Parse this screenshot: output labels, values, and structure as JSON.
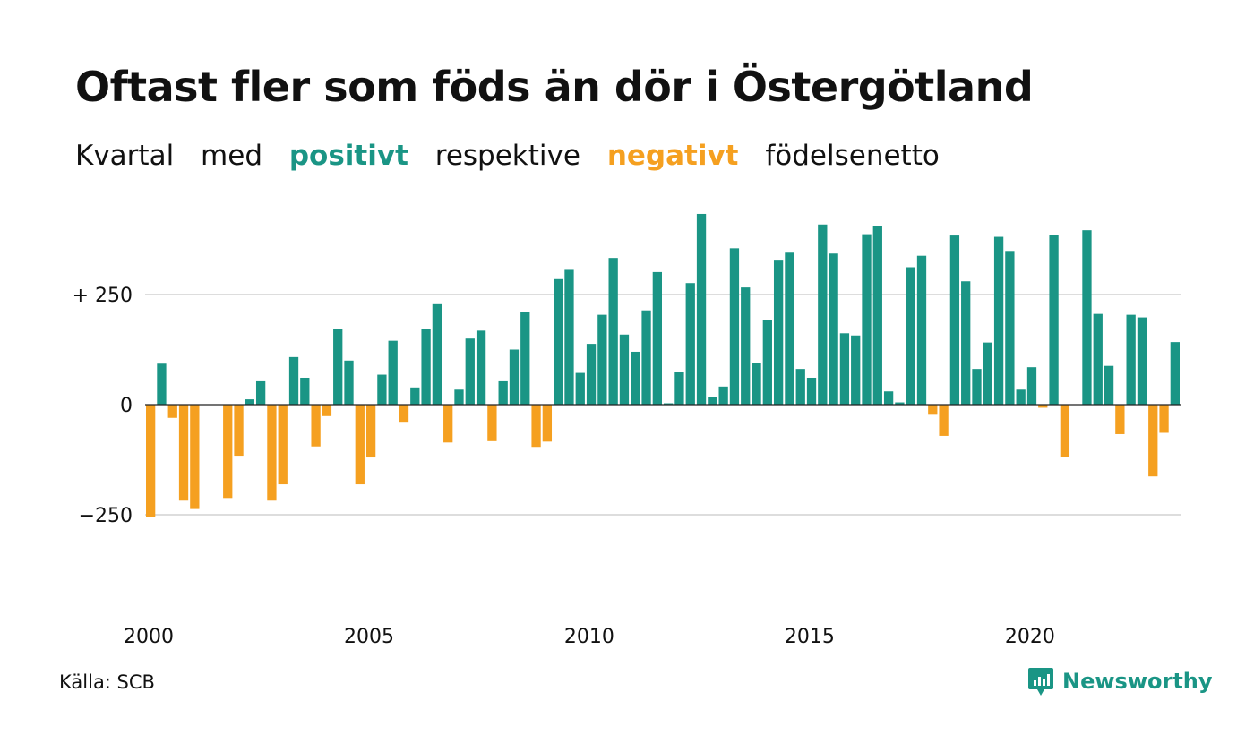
{
  "title": "Oftast fler som föds än dör i Östergötland",
  "subtitle": {
    "prefix": "Kvartal",
    "word2": "med",
    "positive_word": "positivt",
    "middle": "respektive",
    "negative_word": "negativt",
    "suffix": "födelsenetto"
  },
  "source": "Källa: SCB",
  "logo": {
    "text": "Newsworthy",
    "icon": "newsworthy-logo-icon"
  },
  "colors": {
    "positive": "#1a9585",
    "negative": "#f5a020",
    "grid": "#dddddd",
    "text": "#111111"
  },
  "chart_data": {
    "type": "bar",
    "xlabel": "",
    "ylabel": "",
    "ylim": [
      -500,
      440
    ],
    "yticks": [
      {
        "value": 250,
        "label": "+ 250"
      },
      {
        "value": 0,
        "label": "0"
      },
      {
        "value": -250,
        "label": "−250"
      }
    ],
    "xticks": [
      {
        "value": 2000,
        "label": "2000"
      },
      {
        "value": 2005,
        "label": "2005"
      },
      {
        "value": 2010,
        "label": "2010"
      },
      {
        "value": 2015,
        "label": "2015"
      },
      {
        "value": 2020,
        "label": "2020"
      }
    ],
    "start": "2000 Q1",
    "grid": true,
    "legend": "none",
    "values": [
      -255,
      93,
      -30,
      -218,
      -237,
      0,
      0,
      -212,
      -116,
      12,
      53,
      -218,
      -181,
      108,
      61,
      -95,
      -26,
      171,
      100,
      -181,
      -120,
      68,
      145,
      -39,
      39,
      172,
      228,
      -86,
      34,
      150,
      168,
      -83,
      53,
      125,
      210,
      -96,
      -84,
      285,
      306,
      72,
      138,
      204,
      333,
      159,
      120,
      214,
      301,
      3,
      75,
      276,
      433,
      17,
      41,
      355,
      266,
      95,
      193,
      329,
      345,
      81,
      61,
      409,
      343,
      162,
      157,
      387,
      405,
      30,
      5,
      312,
      338,
      -23,
      -71,
      384,
      280,
      81,
      141,
      381,
      349,
      34,
      85,
      -7,
      385,
      -118,
      0,
      396,
      206,
      88,
      -67,
      204,
      198,
      -163,
      -64,
      142
    ]
  }
}
